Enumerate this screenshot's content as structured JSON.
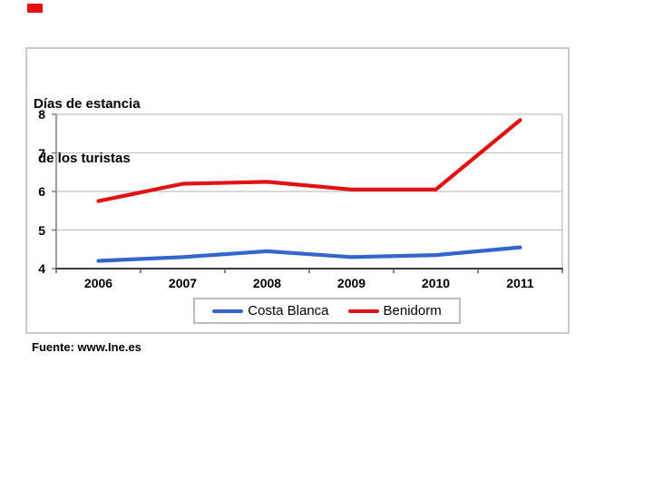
{
  "page": {
    "background": "#ffffff",
    "marker_color": "#e01212"
  },
  "footer": {
    "source": "Fuente: www.Ine.es"
  },
  "chart_data": {
    "type": "line",
    "title": "Días de estancia de los turistas",
    "title_lines": [
      "Días de estancia",
      "de los turistas"
    ],
    "categories": [
      "2006",
      "2007",
      "2008",
      "2009",
      "2010",
      "2011"
    ],
    "series": [
      {
        "name": "Costa Blanca",
        "color": "#3366cc",
        "values": [
          4.2,
          4.3,
          4.45,
          4.3,
          4.35,
          4.55
        ]
      },
      {
        "name": "Benidorm",
        "color": "#e01212",
        "values": [
          5.75,
          6.2,
          6.25,
          6.05,
          6.05,
          7.85
        ]
      }
    ],
    "ylim": [
      4,
      8
    ],
    "yticks": [
      4,
      5,
      6,
      7,
      8
    ],
    "xlabel": "",
    "ylabel": "",
    "grid": true,
    "legend_position": "bottom",
    "legend_labels": [
      "Costa Blanca",
      "Benidorm"
    ]
  }
}
